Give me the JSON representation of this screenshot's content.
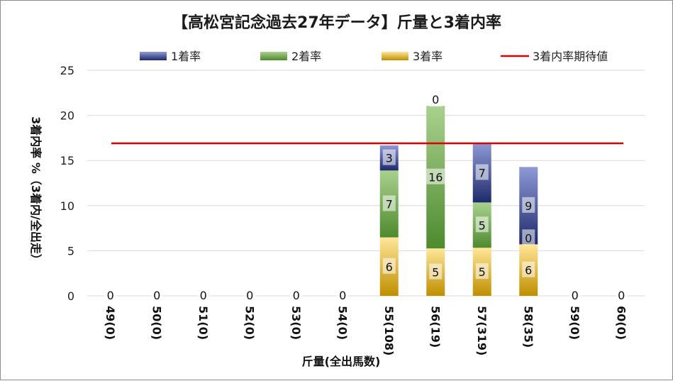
{
  "chart_data": {
    "type": "bar",
    "stacked": true,
    "title": "【高松宮記念過去27年データ】斤量と3着内率",
    "xlabel": "斤量(全出馬数)",
    "ylabel_main": "3着内率 %",
    "ylabel_sub": "（3着内/全出走）",
    "ylim": [
      0,
      25
    ],
    "yticks": [
      "0",
      "5",
      "10",
      "15",
      "20",
      "25"
    ],
    "grid": true,
    "legend_position": "top",
    "categories": [
      "49(0)",
      "50(0)",
      "51(0)",
      "52(0)",
      "53(0)",
      "54(0)",
      "55(108)",
      "56(19)",
      "57(319)",
      "58(35)",
      "59(0)",
      "60(0)"
    ],
    "series": [
      {
        "name": "3着率",
        "values": [
          0,
          0,
          0,
          0,
          0,
          0,
          6.48,
          5.26,
          5.33,
          5.71,
          0,
          0
        ],
        "labels": [
          "0",
          "0",
          "0",
          "0",
          "0",
          "0",
          "6",
          "5",
          "5",
          "6",
          "0",
          "0"
        ],
        "color_dark": "#c08f00",
        "color_light": "#ffe699"
      },
      {
        "name": "2着率",
        "values": [
          0,
          0,
          0,
          0,
          0,
          0,
          7.41,
          15.79,
          5.02,
          0.0,
          0,
          0
        ],
        "labels": [
          "",
          "",
          "",
          "",
          "",
          "",
          "7",
          "16",
          "5",
          "0",
          "",
          ""
        ],
        "color_dark": "#4e8a2e",
        "color_light": "#a9d18e"
      },
      {
        "name": "1着率",
        "values": [
          0,
          0,
          0,
          0,
          0,
          0,
          2.78,
          0.0,
          6.58,
          8.57,
          0,
          0
        ],
        "labels": [
          "",
          "",
          "",
          "",
          "",
          "",
          "3",
          "0",
          "7",
          "9",
          "",
          ""
        ],
        "color_dark": "#1f2a6b",
        "color_light": "#8e9ad6"
      }
    ],
    "reference_line": {
      "name": "3着内率期待値",
      "value": 16.9,
      "color": "#e00000"
    }
  }
}
